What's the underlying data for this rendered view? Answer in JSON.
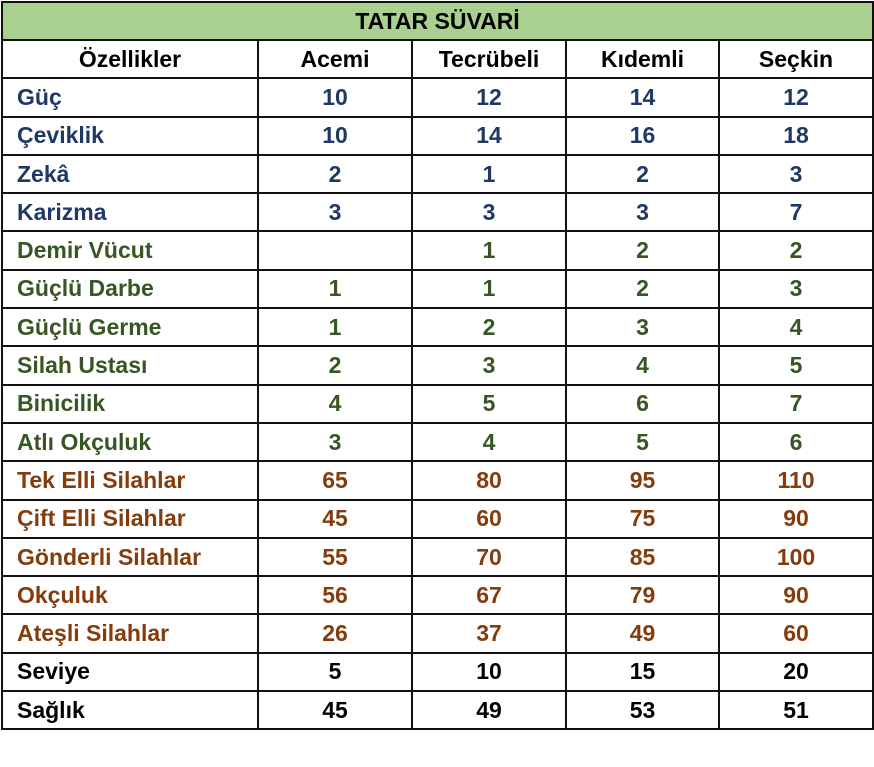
{
  "title": "TATAR SÜVARİ",
  "colors": {
    "header_bg": "#a9d08e",
    "attributes": "#1f3864",
    "skills": "#375623",
    "weapons": "#843c0c",
    "other": "#000000"
  },
  "columns": [
    "Özellikler",
    "Acemi",
    "Tecrübeli",
    "Kıdemli",
    "Seçkin"
  ],
  "rows": [
    {
      "group": "blue",
      "name": "Güç",
      "values": [
        "10",
        "12",
        "14",
        "12"
      ]
    },
    {
      "group": "blue",
      "name": "Çeviklik",
      "values": [
        "10",
        "14",
        "16",
        "18"
      ]
    },
    {
      "group": "blue",
      "name": "Zekâ",
      "values": [
        "2",
        "1",
        "2",
        "3"
      ]
    },
    {
      "group": "blue",
      "name": "Karizma",
      "values": [
        "3",
        "3",
        "3",
        "7"
      ]
    },
    {
      "group": "green",
      "name": "Demir Vücut",
      "values": [
        "",
        "1",
        "2",
        "2"
      ]
    },
    {
      "group": "green",
      "name": "Güçlü Darbe",
      "values": [
        "1",
        "1",
        "2",
        "3"
      ]
    },
    {
      "group": "green",
      "name": "Güçlü Germe",
      "values": [
        "1",
        "2",
        "3",
        "4"
      ]
    },
    {
      "group": "green",
      "name": "Silah Ustası",
      "values": [
        "2",
        "3",
        "4",
        "5"
      ]
    },
    {
      "group": "green",
      "name": "Binicilik",
      "values": [
        "4",
        "5",
        "6",
        "7"
      ]
    },
    {
      "group": "green",
      "name": "Atlı Okçuluk",
      "values": [
        "3",
        "4",
        "5",
        "6"
      ]
    },
    {
      "group": "brown",
      "name": "Tek Elli Silahlar",
      "values": [
        "65",
        "80",
        "95",
        "110"
      ]
    },
    {
      "group": "brown",
      "name": "Çift Elli Silahlar",
      "values": [
        "45",
        "60",
        "75",
        "90"
      ]
    },
    {
      "group": "brown",
      "name": "Gönderli Silahlar",
      "values": [
        "55",
        "70",
        "85",
        "100"
      ]
    },
    {
      "group": "brown",
      "name": "Okçuluk",
      "values": [
        "56",
        "67",
        "79",
        "90"
      ]
    },
    {
      "group": "brown",
      "name": "Ateşli Silahlar",
      "values": [
        "26",
        "37",
        "49",
        "60"
      ]
    },
    {
      "group": "black",
      "name": "Seviye",
      "values": [
        "5",
        "10",
        "15",
        "20"
      ]
    },
    {
      "group": "black",
      "name": "Sağlık",
      "values": [
        "45",
        "49",
        "53",
        "51"
      ]
    }
  ]
}
